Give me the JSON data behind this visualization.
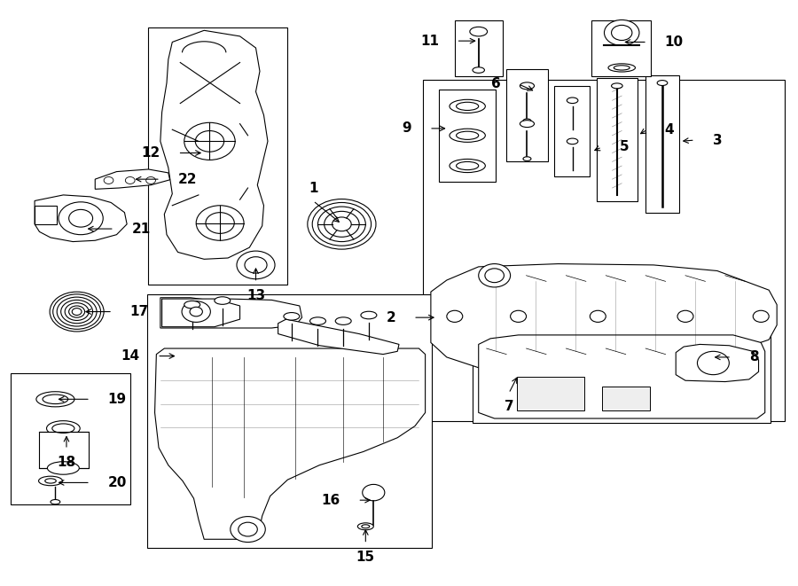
{
  "bg_color": "#ffffff",
  "line_color": "#000000",
  "label_color": "#000000",
  "label_fs": 11
}
